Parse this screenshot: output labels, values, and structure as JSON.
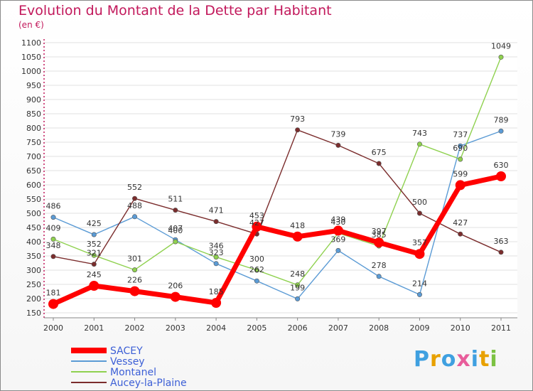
{
  "chart_data": {
    "type": "line",
    "title": "Evolution du Montant de la Dette par Habitant",
    "subtitle": "(en €)",
    "x": [
      "2000",
      "2001",
      "2002",
      "2003",
      "2004",
      "2005",
      "2006",
      "2007",
      "2008",
      "2009",
      "2010",
      "2011"
    ],
    "yticks": [
      "150",
      "200",
      "250",
      "300",
      "350",
      "400",
      "450",
      "500",
      "550",
      "600",
      "650",
      "700",
      "750",
      "800",
      "850",
      "900",
      "950",
      "1000",
      "1050",
      "1100"
    ],
    "ylim": [
      150,
      1100
    ],
    "grid": true,
    "legend_position": "bottom-left",
    "series": [
      {
        "name": "SACEY",
        "color": "#ff0000",
        "values": [
          181,
          245,
          226,
          206,
          185,
          453,
          418,
          439,
          397,
          357,
          599,
          630
        ],
        "labels": [
          "181",
          "245",
          "226",
          "206",
          "185",
          "453",
          "418",
          "439",
          "397",
          "357",
          "599",
          "630"
        ]
      },
      {
        "name": "Vessey",
        "color": "#5b9bd5",
        "values": [
          486,
          425,
          488,
          407,
          323,
          262,
          199,
          369,
          278,
          214,
          737,
          789
        ],
        "labels": [
          "486",
          "425",
          "488",
          "407",
          "323",
          "262",
          "199",
          "369",
          "278",
          "214",
          "737",
          "789"
        ]
      },
      {
        "name": "Montanel",
        "color": "#8fd14f",
        "values": [
          409,
          352,
          301,
          400,
          346,
          300,
          248,
          430,
          385,
          743,
          690,
          1049
        ],
        "labels": [
          "409",
          "352",
          "301",
          "400",
          "346",
          "300",
          "248",
          "430",
          "385",
          "743",
          "690",
          "1049"
        ]
      },
      {
        "name": "Aucey-la-Plaine",
        "color": "#7b2d2d",
        "values": [
          348,
          321,
          552,
          511,
          471,
          427,
          793,
          739,
          675,
          500,
          427,
          363
        ],
        "labels": [
          "348",
          "321",
          "552",
          "511",
          "471",
          "427",
          "793",
          "739",
          "675",
          "500",
          "427",
          "363"
        ]
      }
    ]
  },
  "logo": {
    "letters": [
      "P",
      "r",
      "o",
      "x",
      "i",
      "t",
      "i"
    ],
    "colors": [
      "#3fa0e0",
      "#e8a100",
      "#3fa0e0",
      "#e85d9b",
      "#3fa0e0",
      "#e8a100",
      "#7cc242"
    ]
  }
}
